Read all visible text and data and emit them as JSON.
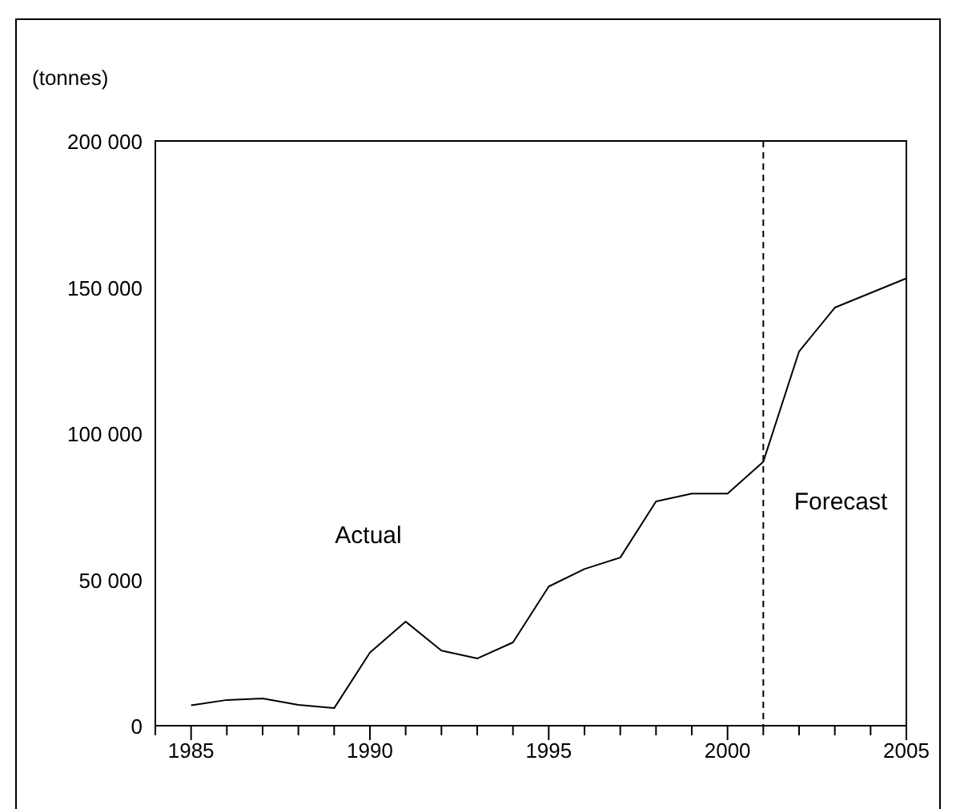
{
  "chart_data": {
    "type": "line",
    "ylabel": "(tonnes)",
    "x": [
      1985,
      1986,
      1987,
      1988,
      1989,
      1990,
      1991,
      1992,
      1993,
      1994,
      1995,
      1996,
      1997,
      1998,
      1999,
      2000,
      2001,
      2002,
      2003,
      2005
    ],
    "series": [
      {
        "color": "#000000",
        "values": [
          7000,
          8800,
          9300,
          7100,
          6000,
          25000,
          35600,
          25700,
          23000,
          28500,
          47600,
          53600,
          57500,
          76700,
          79400,
          79400,
          90300,
          128000,
          143000,
          153000
        ]
      }
    ],
    "xlim": [
      1984,
      2005
    ],
    "xticks": [
      {
        "value": 1984,
        "label": null
      },
      1985,
      {
        "value": 1986,
        "label": null
      },
      {
        "value": 1987,
        "label": null
      },
      {
        "value": 1988,
        "label": null
      },
      {
        "value": 1989,
        "label": null
      },
      1990,
      {
        "value": 1991,
        "label": null
      },
      {
        "value": 1992,
        "label": null
      },
      {
        "value": 1993,
        "label": null
      },
      {
        "value": 1994,
        "label": null
      },
      1995,
      {
        "value": 1996,
        "label": null
      },
      {
        "value": 1997,
        "label": null
      },
      {
        "value": 1998,
        "label": null
      },
      {
        "value": 1999,
        "label": null
      },
      2000,
      {
        "value": 2001,
        "label": null
      },
      {
        "value": 2002,
        "label": null
      },
      {
        "value": 2003,
        "label": null
      },
      {
        "value": 2004,
        "label": null
      },
      2005
    ],
    "ylim": [
      0,
      200000
    ],
    "yticks": [
      {
        "value": 0,
        "label": "0"
      },
      {
        "value": 50000,
        "label": "50 000"
      },
      {
        "value": 100000,
        "label": "100 000"
      },
      {
        "value": 150000,
        "label": "150 000"
      },
      {
        "value": 200000,
        "label": "200 000"
      }
    ],
    "ref_lines": [
      {
        "axis": "x",
        "value": 2001,
        "line_style": "dashed",
        "color": "#000000"
      }
    ],
    "annotations": [
      "Actual",
      "Forecast"
    ],
    "grid": false,
    "marker": "none",
    "line_style": "solid"
  }
}
